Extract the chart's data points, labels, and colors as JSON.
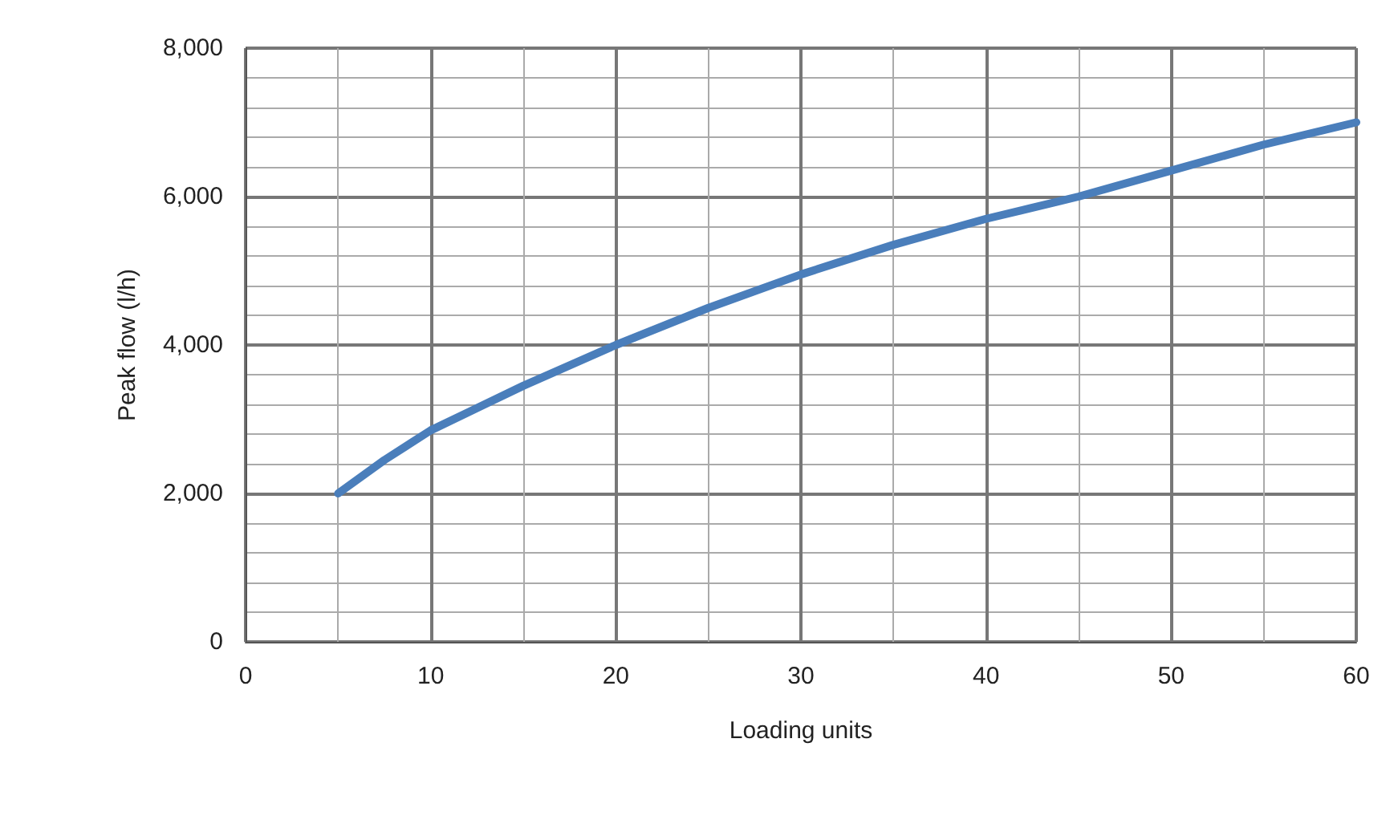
{
  "chart_data": {
    "type": "line",
    "xlabel": "Loading units",
    "ylabel": "Peak flow (l/h)",
    "x": [
      5,
      7.5,
      10,
      15,
      20,
      25,
      30,
      35,
      40,
      45,
      50,
      55,
      60
    ],
    "series": [
      {
        "color": "#4a7ebb",
        "values": [
          2000,
          2450,
          2850,
          3450,
          4000,
          4500,
          4950,
          5350,
          5700,
          6000,
          6350,
          6700,
          7000
        ]
      }
    ],
    "xlim": [
      0,
      60
    ],
    "xticks": [
      0,
      {
        "value": 5,
        "label": null
      },
      10,
      {
        "value": 15,
        "label": null
      },
      20,
      {
        "value": 25,
        "label": null
      },
      30,
      {
        "value": 35,
        "label": null
      },
      40,
      {
        "value": 45,
        "label": null
      },
      50,
      {
        "value": 55,
        "label": null
      },
      60
    ],
    "ylim": [
      0,
      8000
    ],
    "yticks": [
      0,
      {
        "value": 400,
        "label": null
      },
      {
        "value": 800,
        "label": null
      },
      {
        "value": 1200,
        "label": null
      },
      {
        "value": 1600,
        "label": null
      },
      {
        "value": 2000,
        "label": "2,000"
      },
      {
        "value": 2400,
        "label": null
      },
      {
        "value": 2800,
        "label": null
      },
      {
        "value": 3200,
        "label": null
      },
      {
        "value": 3600,
        "label": null
      },
      {
        "value": 4000,
        "label": "4,000"
      },
      {
        "value": 4400,
        "label": null
      },
      {
        "value": 4800,
        "label": null
      },
      {
        "value": 5200,
        "label": null
      },
      {
        "value": 5600,
        "label": null
      },
      {
        "value": 6000,
        "label": "6,000"
      },
      {
        "value": 6400,
        "label": null
      },
      {
        "value": 6800,
        "label": null
      },
      {
        "value": 7200,
        "label": null
      },
      {
        "value": 7600,
        "label": null
      },
      {
        "value": 8000,
        "label": "8,000"
      }
    ],
    "grid": true,
    "marker": "none",
    "line_style": "solid"
  }
}
